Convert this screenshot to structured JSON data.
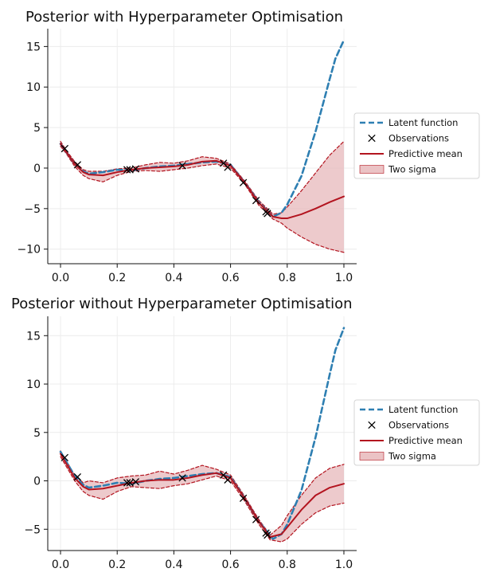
{
  "colors": {
    "latent": "#2e7fb2",
    "mean": "#b3141f",
    "band_fill": "#e7b8bb",
    "band_edge": "#b3141f",
    "grid": "#ececec",
    "axis": "#111111"
  },
  "legend": {
    "latent": "Latent function",
    "obs": "Observations",
    "mean": "Predictive mean",
    "sigma": "Two sigma"
  },
  "chart_data": [
    {
      "type": "line",
      "title": "Posterior with Hyperparameter Optimisation",
      "xlim": [
        0,
        1.0
      ],
      "ylim": [
        -11.8,
        17.2
      ],
      "xticks": [
        0.0,
        0.2,
        0.4,
        0.6,
        0.8,
        1.0
      ],
      "xtick_labels": [
        "0.0",
        "0.2",
        "0.4",
        "0.6",
        "0.8",
        "1.0"
      ],
      "yticks": [
        15,
        10,
        5,
        0,
        -5,
        -10
      ],
      "ytick_labels": [
        "15",
        "10",
        "5",
        "0",
        "−5",
        "−10"
      ],
      "legend_position": "right",
      "latent": {
        "x": [
          0.0,
          0.02,
          0.05,
          0.08,
          0.1,
          0.15,
          0.2,
          0.25,
          0.3,
          0.35,
          0.4,
          0.45,
          0.5,
          0.55,
          0.6,
          0.65,
          0.7,
          0.75,
          0.78,
          0.8,
          0.85,
          0.9,
          0.95,
          0.97,
          1.0
        ],
        "y": [
          3.0,
          2.0,
          0.5,
          -0.4,
          -0.7,
          -0.5,
          -0.2,
          -0.3,
          0.0,
          0.2,
          0.3,
          0.5,
          0.7,
          0.8,
          0.4,
          -1.8,
          -4.2,
          -6.0,
          -5.5,
          -4.5,
          -1.0,
          4.5,
          11.0,
          13.5,
          15.8
        ]
      },
      "mean": {
        "x": [
          0.0,
          0.02,
          0.05,
          0.08,
          0.1,
          0.15,
          0.2,
          0.25,
          0.3,
          0.35,
          0.4,
          0.45,
          0.5,
          0.55,
          0.6,
          0.65,
          0.7,
          0.75,
          0.78,
          0.8,
          0.85,
          0.9,
          0.95,
          1.0
        ],
        "y": [
          3.0,
          2.0,
          0.5,
          -0.5,
          -0.8,
          -0.9,
          -0.5,
          -0.2,
          0.0,
          0.1,
          0.2,
          0.4,
          0.8,
          0.9,
          0.3,
          -1.8,
          -4.3,
          -6.0,
          -6.2,
          -6.2,
          -5.7,
          -5.0,
          -4.2,
          -3.5
        ]
      },
      "upper": {
        "x": [
          0.0,
          0.02,
          0.05,
          0.08,
          0.1,
          0.15,
          0.2,
          0.25,
          0.3,
          0.35,
          0.4,
          0.45,
          0.5,
          0.55,
          0.6,
          0.65,
          0.7,
          0.75,
          0.78,
          0.8,
          0.85,
          0.9,
          0.95,
          1.0
        ],
        "y": [
          3.3,
          2.2,
          0.8,
          -0.2,
          -0.4,
          -0.4,
          -0.1,
          0.0,
          0.4,
          0.7,
          0.6,
          0.9,
          1.4,
          1.2,
          0.5,
          -1.6,
          -4.0,
          -5.7,
          -5.5,
          -4.8,
          -2.8,
          -0.6,
          1.6,
          3.3
        ]
      },
      "lower": {
        "x": [
          0.0,
          0.02,
          0.05,
          0.08,
          0.1,
          0.15,
          0.2,
          0.25,
          0.3,
          0.35,
          0.4,
          0.45,
          0.5,
          0.55,
          0.6,
          0.65,
          0.7,
          0.75,
          0.78,
          0.8,
          0.85,
          0.9,
          0.95,
          1.0
        ],
        "y": [
          2.7,
          1.8,
          0.2,
          -0.9,
          -1.3,
          -1.7,
          -0.9,
          -0.4,
          -0.3,
          -0.4,
          -0.2,
          0.0,
          0.3,
          0.5,
          0.0,
          -2.0,
          -4.6,
          -6.3,
          -6.8,
          -7.4,
          -8.5,
          -9.4,
          -10.0,
          -10.4
        ]
      },
      "observations": {
        "x": [
          0.015,
          0.06,
          0.235,
          0.245,
          0.265,
          0.43,
          0.575,
          0.59,
          0.645,
          0.69,
          0.725,
          0.73
        ],
        "y": [
          2.4,
          0.4,
          -0.2,
          -0.2,
          -0.1,
          0.3,
          0.6,
          0.1,
          -1.8,
          -4.0,
          -5.4,
          -5.6
        ]
      }
    },
    {
      "type": "line",
      "title": "Posterior without Hyperparameter Optimisation",
      "xlim": [
        0,
        1.0
      ],
      "ylim": [
        -7.2,
        17.0
      ],
      "xticks": [
        0.0,
        0.2,
        0.4,
        0.6,
        0.8,
        1.0
      ],
      "xtick_labels": [
        "0.0",
        "0.2",
        "0.4",
        "0.6",
        "0.8",
        "1.0"
      ],
      "yticks": [
        15,
        10,
        5,
        0,
        -5
      ],
      "ytick_labels": [
        "15",
        "10",
        "5",
        "0",
        "−5"
      ],
      "legend_position": "right",
      "latent": {
        "x": [
          0.0,
          0.02,
          0.05,
          0.08,
          0.1,
          0.15,
          0.2,
          0.25,
          0.3,
          0.35,
          0.4,
          0.45,
          0.5,
          0.55,
          0.6,
          0.65,
          0.7,
          0.75,
          0.78,
          0.8,
          0.85,
          0.9,
          0.95,
          0.97,
          1.0
        ],
        "y": [
          3.0,
          2.0,
          0.5,
          -0.4,
          -0.7,
          -0.5,
          -0.2,
          -0.3,
          0.0,
          0.2,
          0.3,
          0.5,
          0.7,
          0.8,
          0.4,
          -1.8,
          -4.2,
          -6.0,
          -5.5,
          -4.5,
          -1.0,
          4.5,
          11.0,
          13.5,
          15.8
        ]
      },
      "mean": {
        "x": [
          0.0,
          0.02,
          0.05,
          0.08,
          0.1,
          0.15,
          0.2,
          0.25,
          0.3,
          0.35,
          0.4,
          0.45,
          0.5,
          0.55,
          0.6,
          0.65,
          0.7,
          0.74,
          0.78,
          0.8,
          0.85,
          0.9,
          0.95,
          1.0
        ],
        "y": [
          2.8,
          1.8,
          0.3,
          -0.6,
          -0.9,
          -0.8,
          -0.5,
          -0.2,
          0.0,
          0.1,
          0.1,
          0.3,
          0.6,
          0.8,
          0.3,
          -1.8,
          -4.2,
          -5.8,
          -5.5,
          -4.8,
          -3.0,
          -1.5,
          -0.7,
          -0.3
        ]
      },
      "upper": {
        "x": [
          0.0,
          0.02,
          0.05,
          0.08,
          0.1,
          0.15,
          0.2,
          0.25,
          0.3,
          0.35,
          0.4,
          0.45,
          0.5,
          0.55,
          0.6,
          0.65,
          0.7,
          0.74,
          0.78,
          0.8,
          0.85,
          0.9,
          0.95,
          1.0
        ],
        "y": [
          3.1,
          2.1,
          0.6,
          -0.2,
          0.0,
          -0.2,
          0.3,
          0.5,
          0.6,
          1.0,
          0.7,
          1.1,
          1.6,
          1.2,
          0.6,
          -1.6,
          -4.0,
          -5.6,
          -4.6,
          -3.6,
          -1.5,
          0.3,
          1.3,
          1.7
        ]
      },
      "lower": {
        "x": [
          0.0,
          0.02,
          0.05,
          0.08,
          0.1,
          0.15,
          0.2,
          0.25,
          0.3,
          0.35,
          0.4,
          0.45,
          0.5,
          0.55,
          0.6,
          0.65,
          0.7,
          0.74,
          0.78,
          0.8,
          0.85,
          0.9,
          0.95,
          1.0
        ],
        "y": [
          2.5,
          1.5,
          0.0,
          -1.1,
          -1.5,
          -1.9,
          -1.1,
          -0.6,
          -0.7,
          -0.8,
          -0.5,
          -0.3,
          0.1,
          0.5,
          0.0,
          -2.1,
          -4.5,
          -6.1,
          -6.3,
          -6.0,
          -4.5,
          -3.3,
          -2.6,
          -2.3
        ]
      },
      "observations": {
        "x": [
          0.015,
          0.06,
          0.235,
          0.245,
          0.265,
          0.43,
          0.575,
          0.59,
          0.645,
          0.69,
          0.725,
          0.73
        ],
        "y": [
          2.4,
          0.4,
          -0.2,
          -0.2,
          -0.1,
          0.3,
          0.6,
          0.1,
          -1.8,
          -4.0,
          -5.4,
          -5.6
        ]
      }
    }
  ]
}
